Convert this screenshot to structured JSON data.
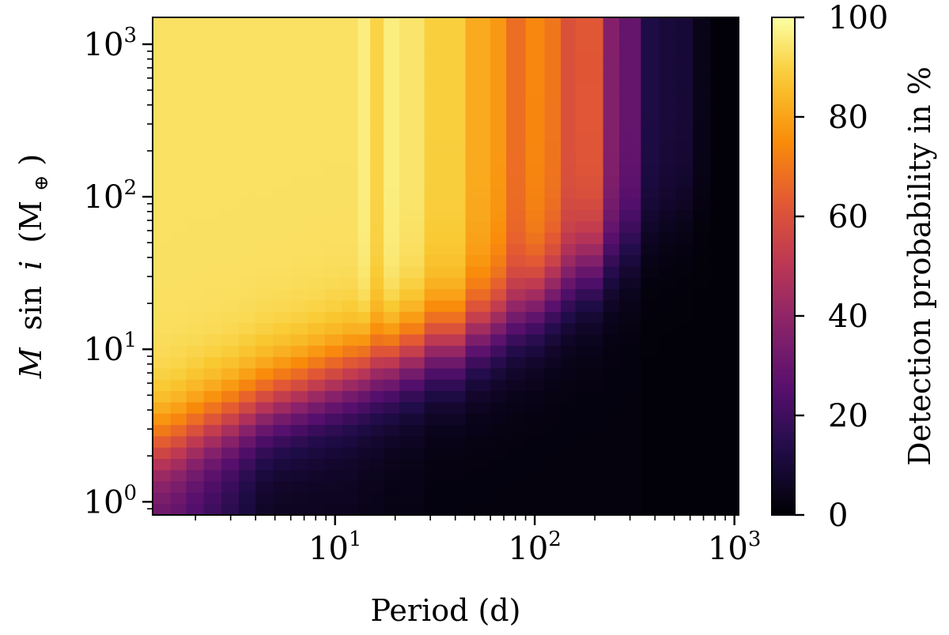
{
  "chart_data": {
    "type": "heatmap",
    "xlabel": "Period (d)",
    "ylabel": {
      "italic_symbol": "M",
      "sin": "sin",
      "italic_i": "i",
      "unit": "(M",
      "unit_sub": "⊕",
      "unit_close": ")"
    },
    "colorbar_label": "Detection probability in %",
    "colorscale": "inferno",
    "x_scale": "log",
    "y_scale": "log",
    "xlim": [
      1.22,
      1050
    ],
    "ylim": [
      0.82,
      1500
    ],
    "zlim": [
      0,
      100
    ],
    "x_ticks": [
      {
        "value": 10,
        "base": "10",
        "exp": "1"
      },
      {
        "value": 100,
        "base": "10",
        "exp": "2"
      },
      {
        "value": 1000,
        "base": "10",
        "exp": "3"
      }
    ],
    "y_ticks": [
      {
        "value": 1,
        "base": "10",
        "exp": "0"
      },
      {
        "value": 10,
        "base": "10",
        "exp": "1"
      },
      {
        "value": 100,
        "base": "10",
        "exp": "2"
      },
      {
        "value": 1000,
        "base": "10",
        "exp": "3"
      }
    ],
    "colorbar_ticks": [
      "0",
      "20",
      "40",
      "60",
      "80",
      "100"
    ],
    "colorbar_tick_values": [
      0,
      20,
      40,
      60,
      80,
      100
    ],
    "columns": [
      {
        "period_range": [
          1.22,
          1.5
        ],
        "high_mass_prob": 96,
        "threshold_mass": 2.3,
        "low_mass_prob": 28
      },
      {
        "period_range": [
          1.5,
          1.8
        ],
        "high_mass_prob": 96,
        "threshold_mass": 2.5,
        "low_mass_prob": 26
      },
      {
        "period_range": [
          1.8,
          2.2
        ],
        "high_mass_prob": 96,
        "threshold_mass": 2.8,
        "low_mass_prob": 22
      },
      {
        "period_range": [
          2.2,
          2.7
        ],
        "high_mass_prob": 96,
        "threshold_mass": 3.1,
        "low_mass_prob": 18
      },
      {
        "period_range": [
          2.7,
          3.3
        ],
        "high_mass_prob": 96,
        "threshold_mass": 3.4,
        "low_mass_prob": 14
      },
      {
        "period_range": [
          3.3,
          4.0
        ],
        "high_mass_prob": 96,
        "threshold_mass": 3.8,
        "low_mass_prob": 10
      },
      {
        "period_range": [
          4.0,
          4.9
        ],
        "high_mass_prob": 96,
        "threshold_mass": 4.2,
        "low_mass_prob": 6
      },
      {
        "period_range": [
          4.9,
          6.0
        ],
        "high_mass_prob": 96,
        "threshold_mass": 4.6,
        "low_mass_prob": 5
      },
      {
        "period_range": [
          6.0,
          7.3
        ],
        "high_mass_prob": 96,
        "threshold_mass": 5.0,
        "low_mass_prob": 5
      },
      {
        "period_range": [
          7.3,
          8.9
        ],
        "high_mass_prob": 96,
        "threshold_mass": 5.5,
        "low_mass_prob": 5
      },
      {
        "period_range": [
          8.9,
          10.9
        ],
        "high_mass_prob": 96,
        "threshold_mass": 6.0,
        "low_mass_prob": 5
      },
      {
        "period_range": [
          10.9,
          13.0
        ],
        "high_mass_prob": 96,
        "threshold_mass": 6.5,
        "low_mass_prob": 5
      },
      {
        "period_range": [
          13.0,
          15.0
        ],
        "high_mass_prob": 99,
        "threshold_mass": 7.0,
        "low_mass_prob": 4
      },
      {
        "period_range": [
          15.0,
          17.5
        ],
        "high_mass_prob": 93,
        "threshold_mass": 7.5,
        "low_mass_prob": 4
      },
      {
        "period_range": [
          17.5,
          21.0
        ],
        "high_mass_prob": 99,
        "threshold_mass": 8.0,
        "low_mass_prob": 3
      },
      {
        "period_range": [
          21.0,
          28.0
        ],
        "high_mass_prob": 97,
        "threshold_mass": 9.0,
        "low_mass_prob": 3
      },
      {
        "period_range": [
          28.0,
          45.0
        ],
        "high_mass_prob": 92,
        "threshold_mass": 10.5,
        "low_mass_prob": 2
      },
      {
        "period_range": [
          45.0,
          60.0
        ],
        "high_mass_prob": 84,
        "threshold_mass": 13.0,
        "low_mass_prob": 2
      },
      {
        "period_range": [
          60.0,
          72.0
        ],
        "high_mass_prob": 80,
        "threshold_mass": 15.0,
        "low_mass_prob": 2
      },
      {
        "period_range": [
          72.0,
          90.0
        ],
        "high_mass_prob": 70,
        "threshold_mass": 17.0,
        "low_mass_prob": 2
      },
      {
        "period_range": [
          90.0,
          112.0
        ],
        "high_mass_prob": 76,
        "threshold_mass": 20.0,
        "low_mass_prob": 2
      },
      {
        "period_range": [
          112.0,
          135.0
        ],
        "high_mass_prob": 72,
        "threshold_mass": 24.0,
        "low_mass_prob": 2
      },
      {
        "period_range": [
          135.0,
          160.0
        ],
        "high_mass_prob": 62,
        "threshold_mass": 28.0,
        "low_mass_prob": 2
      },
      {
        "period_range": [
          160.0,
          220.0
        ],
        "high_mass_prob": 64,
        "threshold_mass": 34.0,
        "low_mass_prob": 2
      },
      {
        "period_range": [
          220.0,
          265.0
        ],
        "high_mass_prob": 38,
        "threshold_mass": 40.0,
        "low_mass_prob": 2
      },
      {
        "period_range": [
          265.0,
          340.0
        ],
        "high_mass_prob": 30,
        "threshold_mass": 50.0,
        "low_mass_prob": 2
      },
      {
        "period_range": [
          340.0,
          420.0
        ],
        "high_mass_prob": 13,
        "threshold_mass": 60.0,
        "low_mass_prob": 1
      },
      {
        "period_range": [
          420.0,
          510.0
        ],
        "high_mass_prob": 11,
        "threshold_mass": 70.0,
        "low_mass_prob": 1
      },
      {
        "period_range": [
          510.0,
          620.0
        ],
        "high_mass_prob": 10,
        "threshold_mass": 80.0,
        "low_mass_prob": 1
      },
      {
        "period_range": [
          620.0,
          760.0
        ],
        "high_mass_prob": 4,
        "threshold_mass": 90.0,
        "low_mass_prob": 1
      },
      {
        "period_range": [
          760.0,
          1050.0
        ],
        "high_mass_prob": 1,
        "threshold_mass": 100.0,
        "low_mass_prob": 1
      }
    ]
  }
}
